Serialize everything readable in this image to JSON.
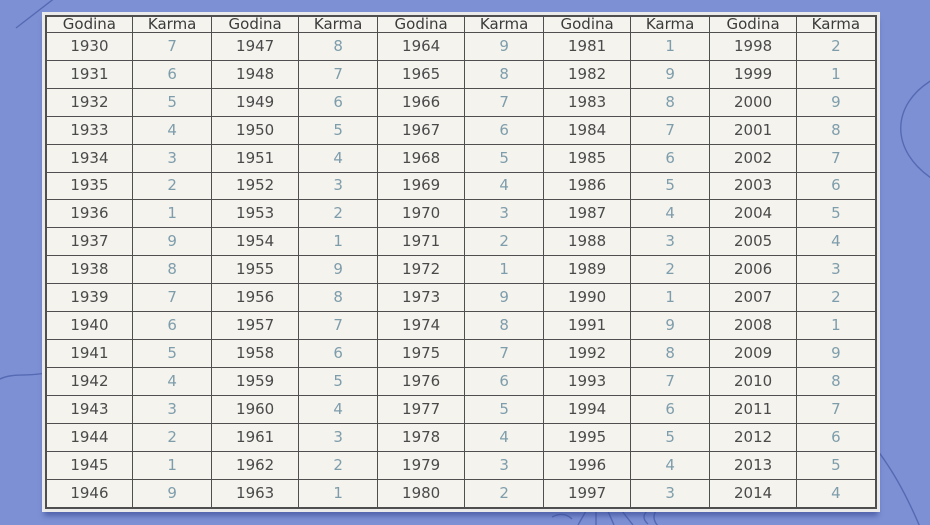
{
  "page": {
    "background_color": "#7e90d4",
    "decoration_color": "#3a51a0"
  },
  "table": {
    "frame_color": "#e9eae9",
    "cell_background": "#f4f3ee",
    "grid_color": "#4f4f4f",
    "header_color": "#3b3b3b",
    "year_color": "#4a4a4a",
    "karma_color": "#7e9dab",
    "headers": [
      "Godina",
      "Karma",
      "Godina",
      "Karma",
      "Godina",
      "Karma",
      "Godina",
      "Karma",
      "Godina",
      "Karma"
    ],
    "rows": [
      [
        1930,
        7,
        1947,
        8,
        1964,
        9,
        1981,
        1,
        1998,
        2
      ],
      [
        1931,
        6,
        1948,
        7,
        1965,
        8,
        1982,
        9,
        1999,
        1
      ],
      [
        1932,
        5,
        1949,
        6,
        1966,
        7,
        1983,
        8,
        2000,
        9
      ],
      [
        1933,
        4,
        1950,
        5,
        1967,
        6,
        1984,
        7,
        2001,
        8
      ],
      [
        1934,
        3,
        1951,
        4,
        1968,
        5,
        1985,
        6,
        2002,
        7
      ],
      [
        1935,
        2,
        1952,
        3,
        1969,
        4,
        1986,
        5,
        2003,
        6
      ],
      [
        1936,
        1,
        1953,
        2,
        1970,
        3,
        1987,
        4,
        2004,
        5
      ],
      [
        1937,
        9,
        1954,
        1,
        1971,
        2,
        1988,
        3,
        2005,
        4
      ],
      [
        1938,
        8,
        1955,
        9,
        1972,
        1,
        1989,
        2,
        2006,
        3
      ],
      [
        1939,
        7,
        1956,
        8,
        1973,
        9,
        1990,
        1,
        2007,
        2
      ],
      [
        1940,
        6,
        1957,
        7,
        1974,
        8,
        1991,
        9,
        2008,
        1
      ],
      [
        1941,
        5,
        1958,
        6,
        1975,
        7,
        1992,
        8,
        2009,
        9
      ],
      [
        1942,
        4,
        1959,
        5,
        1976,
        6,
        1993,
        7,
        2010,
        8
      ],
      [
        1943,
        3,
        1960,
        4,
        1977,
        5,
        1994,
        6,
        2011,
        7
      ],
      [
        1944,
        2,
        1961,
        3,
        1978,
        4,
        1995,
        5,
        2012,
        6
      ],
      [
        1945,
        1,
        1962,
        2,
        1979,
        3,
        1996,
        4,
        2013,
        5
      ],
      [
        1946,
        9,
        1963,
        1,
        1980,
        2,
        1997,
        3,
        2014,
        4
      ]
    ]
  },
  "chart_data": {
    "type": "table",
    "title": "",
    "columns": [
      "Godina",
      "Karma",
      "Godina",
      "Karma",
      "Godina",
      "Karma",
      "Godina",
      "Karma",
      "Godina",
      "Karma"
    ],
    "rows": [
      [
        1930,
        7,
        1947,
        8,
        1964,
        9,
        1981,
        1,
        1998,
        2
      ],
      [
        1931,
        6,
        1948,
        7,
        1965,
        8,
        1982,
        9,
        1999,
        1
      ],
      [
        1932,
        5,
        1949,
        6,
        1966,
        7,
        1983,
        8,
        2000,
        9
      ],
      [
        1933,
        4,
        1950,
        5,
        1967,
        6,
        1984,
        7,
        2001,
        8
      ],
      [
        1934,
        3,
        1951,
        4,
        1968,
        5,
        1985,
        6,
        2002,
        7
      ],
      [
        1935,
        2,
        1952,
        3,
        1969,
        4,
        1986,
        5,
        2003,
        6
      ],
      [
        1936,
        1,
        1953,
        2,
        1970,
        3,
        1987,
        4,
        2004,
        5
      ],
      [
        1937,
        9,
        1954,
        1,
        1971,
        2,
        1988,
        3,
        2005,
        4
      ],
      [
        1938,
        8,
        1955,
        9,
        1972,
        1,
        1989,
        2,
        2006,
        3
      ],
      [
        1939,
        7,
        1956,
        8,
        1973,
        9,
        1990,
        1,
        2007,
        2
      ],
      [
        1940,
        6,
        1957,
        7,
        1974,
        8,
        1991,
        9,
        2008,
        1
      ],
      [
        1941,
        5,
        1958,
        6,
        1975,
        7,
        1992,
        8,
        2009,
        9
      ],
      [
        1942,
        4,
        1959,
        5,
        1976,
        6,
        1993,
        7,
        2010,
        8
      ],
      [
        1943,
        3,
        1960,
        4,
        1977,
        5,
        1994,
        6,
        2011,
        7
      ],
      [
        1944,
        2,
        1961,
        3,
        1978,
        4,
        1995,
        5,
        2012,
        6
      ],
      [
        1945,
        1,
        1962,
        2,
        1979,
        3,
        1996,
        4,
        2013,
        5
      ],
      [
        1946,
        9,
        1963,
        1,
        1980,
        2,
        1997,
        3,
        2014,
        4
      ]
    ]
  }
}
